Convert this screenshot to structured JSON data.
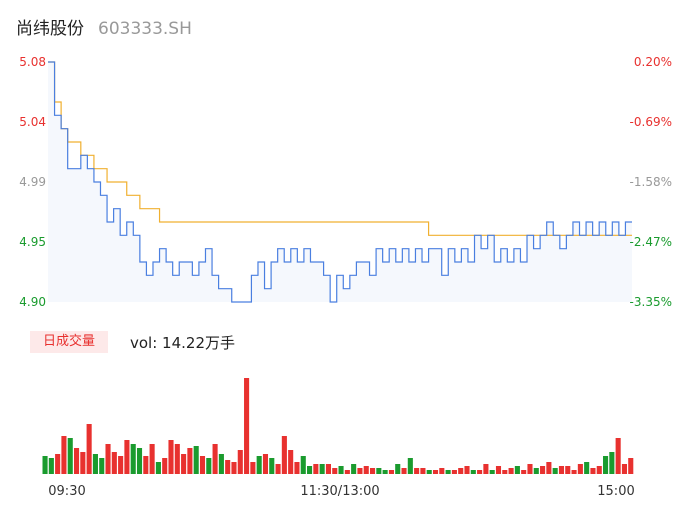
{
  "header": {
    "name": "尚纬股份",
    "code": "603333.SH"
  },
  "colors": {
    "up": "#e8312f",
    "down": "#1a9b2e",
    "neutral": "#999999",
    "price_line": "#4a7fe0",
    "avg_line": "#f0b030"
  },
  "volume": {
    "badge": "日成交量",
    "text": "vol: 14.22万手"
  },
  "chart_data": [
    {
      "type": "line",
      "title": "",
      "y_ticks_left": [
        "5.08",
        "5.04",
        "4.99",
        "4.95",
        "4.90"
      ],
      "y_ticks_right": [
        "0.20%",
        "-0.69%",
        "-1.58%",
        "-2.47%",
        "-3.35%"
      ],
      "ylim": [
        4.9,
        5.08
      ],
      "x_ticks": [
        "09:30",
        "11:30/13:00",
        "15:00"
      ],
      "series": [
        {
          "values": [
            5.08,
            5.04,
            5.03,
            5.0,
            5.0,
            5.01,
            5.0,
            4.99,
            4.98,
            4.96,
            4.97,
            4.95,
            4.96,
            4.95,
            4.93,
            4.92,
            4.93,
            4.94,
            4.93,
            4.92,
            4.93,
            4.93,
            4.92,
            4.93,
            4.94,
            4.92,
            4.91,
            4.91,
            4.9,
            4.9,
            4.9,
            4.92,
            4.93,
            4.91,
            4.93,
            4.94,
            4.93,
            4.94,
            4.93,
            4.94,
            4.93,
            4.93,
            4.92,
            4.9,
            4.92,
            4.91,
            4.92,
            4.93,
            4.93,
            4.92,
            4.94,
            4.93,
            4.94,
            4.93,
            4.94,
            4.93,
            4.94,
            4.93,
            4.94,
            4.94,
            4.92,
            4.94,
            4.93,
            4.94,
            4.93,
            4.95,
            4.94,
            4.95,
            4.93,
            4.94,
            4.93,
            4.94,
            4.93,
            4.95,
            4.94,
            4.95,
            4.96,
            4.95,
            4.94,
            4.95,
            4.96,
            4.95,
            4.96,
            4.95,
            4.96,
            4.95,
            4.96,
            4.95,
            4.96,
            4.96
          ]
        },
        {
          "values": [
            5.08,
            5.05,
            5.03,
            5.02,
            5.02,
            5.01,
            5.01,
            5.0,
            5.0,
            4.99,
            4.99,
            4.99,
            4.98,
            4.98,
            4.97,
            4.97,
            4.97,
            4.96,
            4.96,
            4.96,
            4.96,
            4.96,
            4.96,
            4.96,
            4.96,
            4.96,
            4.96,
            4.96,
            4.96,
            4.96,
            4.96,
            4.96,
            4.96,
            4.96,
            4.96,
            4.96,
            4.96,
            4.96,
            4.96,
            4.96,
            4.96,
            4.96,
            4.96,
            4.96,
            4.96,
            4.96,
            4.96,
            4.96,
            4.96,
            4.96,
            4.96,
            4.96,
            4.96,
            4.96,
            4.96,
            4.96,
            4.96,
            4.96,
            4.95,
            4.95,
            4.95,
            4.95,
            4.95,
            4.95,
            4.95,
            4.95,
            4.95,
            4.95,
            4.95,
            4.95,
            4.95,
            4.95,
            4.95,
            4.95,
            4.95,
            4.95,
            4.95,
            4.95,
            4.95,
            4.95,
            4.95,
            4.95,
            4.95,
            4.95,
            4.95,
            4.95,
            4.95,
            4.95,
            4.95,
            4.95
          ]
        }
      ]
    },
    {
      "type": "bar",
      "title": "",
      "values": [
        18,
        16,
        20,
        38,
        36,
        26,
        22,
        50,
        20,
        16,
        30,
        22,
        18,
        34,
        30,
        26,
        18,
        30,
        12,
        16,
        34,
        30,
        20,
        26,
        28,
        18,
        16,
        30,
        20,
        14,
        12,
        24,
        96,
        12,
        18,
        20,
        16,
        10,
        38,
        24,
        12,
        18,
        8,
        10,
        10,
        10,
        6,
        8,
        4,
        10,
        6,
        8,
        6,
        6,
        4,
        4,
        10,
        6,
        16,
        6,
        6,
        4,
        4,
        6,
        4,
        4,
        6,
        8,
        4,
        4,
        10,
        4,
        8,
        4,
        6,
        8,
        4,
        10,
        6,
        8,
        12,
        6,
        8,
        8,
        4,
        10,
        12,
        6,
        8,
        18,
        22,
        36,
        10,
        16
      ],
      "directions": [
        "d",
        "d",
        "u",
        "u",
        "d",
        "u",
        "u",
        "u",
        "d",
        "d",
        "u",
        "u",
        "u",
        "u",
        "d",
        "d",
        "u",
        "u",
        "d",
        "u",
        "u",
        "u",
        "u",
        "u",
        "d",
        "u",
        "d",
        "u",
        "d",
        "u",
        "u",
        "u",
        "u",
        "u",
        "d",
        "u",
        "d",
        "u",
        "u",
        "u",
        "u",
        "d",
        "d",
        "u",
        "d",
        "u",
        "u",
        "d",
        "u",
        "d",
        "u",
        "u",
        "u",
        "d",
        "d",
        "u",
        "d",
        "u",
        "d",
        "u",
        "u",
        "d",
        "u",
        "u",
        "d",
        "u",
        "u",
        "u",
        "d",
        "u",
        "u",
        "d",
        "u",
        "u",
        "u",
        "d",
        "u",
        "u",
        "d",
        "u",
        "u",
        "d",
        "u",
        "u",
        "u",
        "u",
        "d",
        "u",
        "u",
        "d",
        "d",
        "u",
        "u",
        "u"
      ]
    }
  ]
}
